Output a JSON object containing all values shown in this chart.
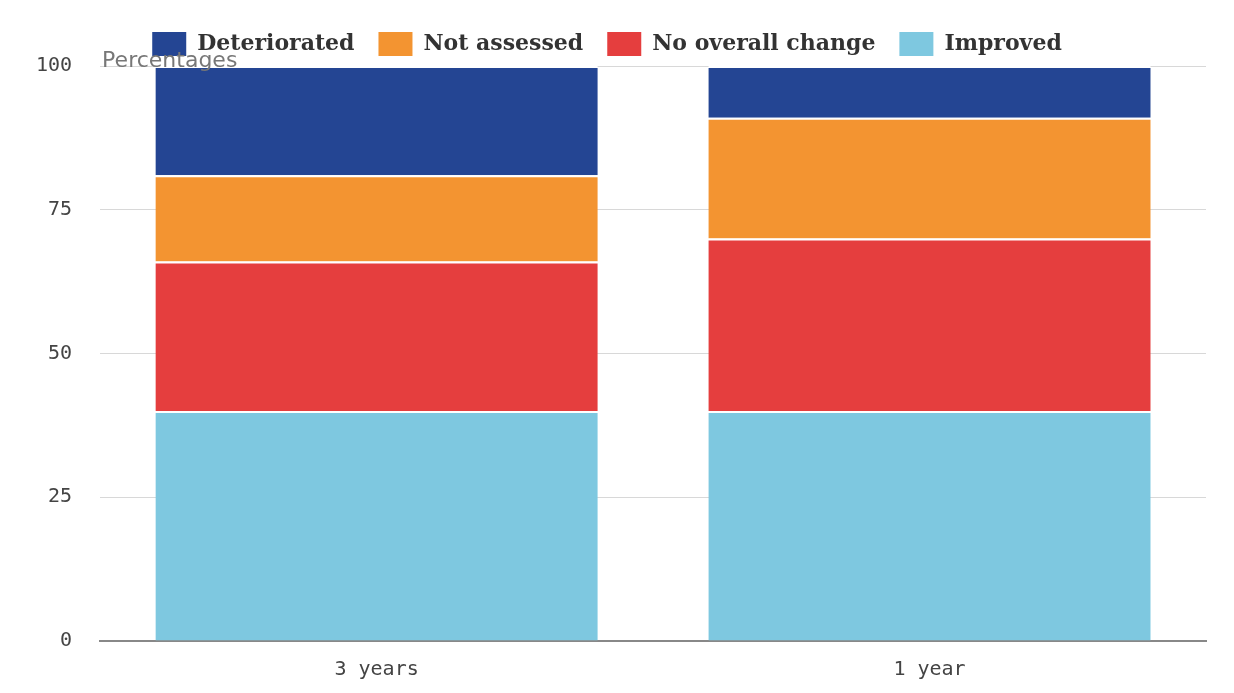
{
  "chart_data": {
    "type": "bar",
    "stacked": true,
    "ylabel": "Percentages",
    "categories": [
      "3 years",
      "1 year"
    ],
    "series": [
      {
        "name": "Improved",
        "color": "#7ec8e0",
        "values": [
          40,
          40
        ]
      },
      {
        "name": "No overall change",
        "color": "#e53e3e",
        "values": [
          26,
          30
        ]
      },
      {
        "name": "Not assessed",
        "color": "#f39431",
        "values": [
          15,
          21
        ]
      },
      {
        "name": "Deteriorated",
        "color": "#244593",
        "values": [
          19,
          9
        ]
      }
    ],
    "ylim": [
      0,
      100
    ],
    "yticks": [
      0,
      25,
      50,
      75,
      100
    ],
    "grid": "y",
    "legend": "top"
  }
}
